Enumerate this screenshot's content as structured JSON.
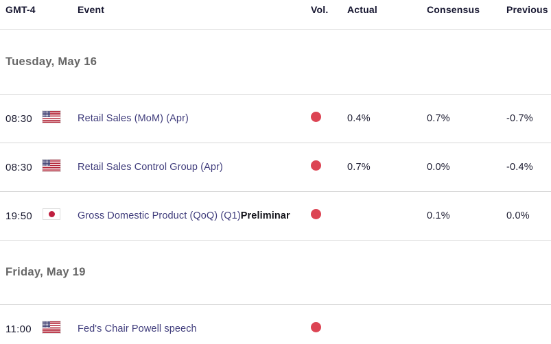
{
  "table": {
    "timezone_label": "GMT-4",
    "columns": {
      "time": "GMT-4",
      "event": "Event",
      "volatility": "Vol.",
      "actual": "Actual",
      "consensus": "Consensus",
      "previous": "Previous"
    },
    "colors": {
      "accent_red": "#dc4453",
      "event_text": "#403d7c",
      "day_text": "#666666",
      "header_text": "#15152f",
      "value_text": "#1b1b30",
      "separator": "#d8d8d8"
    },
    "sections": [
      {
        "day": "Tuesday, May 16",
        "rows": [
          {
            "time": "08:30",
            "country": "US",
            "flag_icon": "us-flag-icon",
            "event": "Retail Sales (MoM) (Apr)",
            "event_suffix": "",
            "volatility": "high-red-dot",
            "actual": "0.4%",
            "consensus": "0.7%",
            "previous": "-0.7%"
          },
          {
            "time": "08:30",
            "country": "US",
            "flag_icon": "us-flag-icon",
            "event": "Retail Sales Control Group (Apr)",
            "event_suffix": "",
            "volatility": "high-red-dot",
            "actual": "0.7%",
            "consensus": "0.0%",
            "previous": "-0.4%"
          },
          {
            "time": "19:50",
            "country": "JP",
            "flag_icon": "japan-flag-icon",
            "event": "Gross Domestic Product (QoQ) (Q1)",
            "event_suffix": "Preliminar",
            "volatility": "high-red-dot",
            "actual": "",
            "consensus": "0.1%",
            "previous": "0.0%"
          }
        ]
      },
      {
        "day": "Friday, May 19",
        "rows": [
          {
            "time": "11:00",
            "country": "US",
            "flag_icon": "us-flag-icon",
            "event": "Fed's Chair Powell speech",
            "event_suffix": "",
            "volatility": "high-red-dot",
            "actual": "",
            "consensus": "",
            "previous": ""
          }
        ]
      }
    ]
  }
}
